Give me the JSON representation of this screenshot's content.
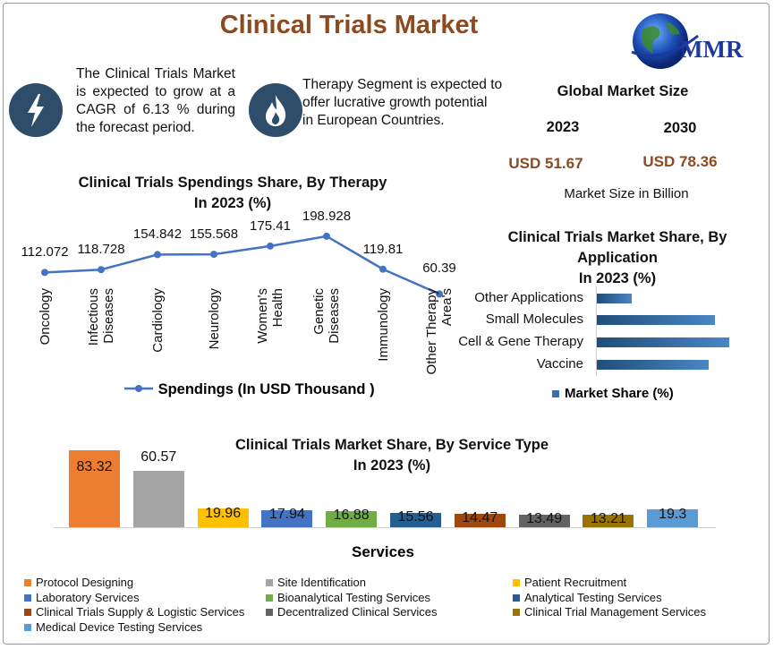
{
  "header": {
    "title": "Clinical Trials Market",
    "logo_text": "MMR"
  },
  "info": {
    "growth_text_lines": [
      "The Clinical Trials Market",
      "is expected to grow at a",
      "CAGR of 6.13 % during",
      "the forecast period."
    ],
    "therapy_text_lines": [
      "Therapy Segment is expected to",
      "offer lucrative growth potential",
      "in European Countries."
    ],
    "growth_icon": "lightning-bolt-icon",
    "therapy_icon": "flame-icon"
  },
  "market_size": {
    "title": "Global Market Size",
    "year_a": "2023",
    "year_b": "2030",
    "value_a": "USD 51.67",
    "value_b": "USD 78.36",
    "note": "Market Size in Billion"
  },
  "colors": {
    "brand": "#8b4a1f",
    "line": "#4472c4",
    "icon_bg": "#2d4d6b"
  },
  "chart_data": [
    {
      "type": "line",
      "title_lines": [
        "Clinical Trials Spendings  Share, By Therapy",
        "In 2023 (%)"
      ],
      "categories": [
        "Oncology",
        "Infectious Diseases",
        "Cardiology",
        "Neurology",
        "Women's Health",
        "Genetic Diseases",
        "Immunology",
        "Other Therapy Area's"
      ],
      "category_lines": [
        [
          "Oncology"
        ],
        [
          "Infectious",
          "Diseases"
        ],
        [
          "Cardiology"
        ],
        [
          "Neurology"
        ],
        [
          "Women's",
          "Health"
        ],
        [
          "Genetic",
          "Diseases"
        ],
        [
          "Immunology"
        ],
        [
          "Other Therapy",
          "Area's"
        ]
      ],
      "series": [
        {
          "name": "Spendings (In USD Thousand )",
          "values": [
            112.072,
            118.728,
            154.842,
            155.568,
            175.41,
            198.928,
            119.81,
            60.39
          ]
        }
      ],
      "value_labels": [
        "112.072",
        "118.728",
        "154.842",
        "155.568",
        "175.41",
        "198.928",
        "119.81",
        "60.39"
      ],
      "legend": "bottom",
      "grid": false
    },
    {
      "type": "bar",
      "orientation": "horizontal",
      "title_lines": [
        "Clinical Trials Market  Share, By",
        "Application",
        "In 2023 (%)"
      ],
      "categories": [
        "Other Applications",
        "Small Molecules",
        "Cell & Gene Therapy",
        "Vaccine"
      ],
      "values": [
        12,
        40,
        45,
        38
      ],
      "series_name": "Market Share (%)",
      "legend": "bottom",
      "grid": false
    },
    {
      "type": "bar",
      "title_lines": [
        "Clinical Trials Market  Share, By Service Type",
        "In 2023 (%)"
      ],
      "xlabel": "Services",
      "categories": [
        "Protocol Designing",
        "Site Identification",
        "Patient Recruitment",
        "Laboratory Services",
        "Bioanalytical Testing Services",
        "Analytical Testing Services",
        "Clinical Trials Supply & Logistic Services",
        "Decentralized Clinical Services",
        "Clinical Trial Management Services",
        "Medical Device Testing Services"
      ],
      "values": [
        83.32,
        60.57,
        19.96,
        17.94,
        16.88,
        15.56,
        14.47,
        13.49,
        13.21,
        19.3
      ],
      "value_labels": [
        "83.32",
        "60.57",
        "19.96",
        "17.94",
        "16.88",
        "15.56",
        "14.47",
        "13.49",
        "13.21",
        "19.3"
      ],
      "colors": [
        "#ed7d31",
        "#a5a5a5",
        "#ffc000",
        "#4472c4",
        "#70ad47",
        "#255e91",
        "#9e480e",
        "#636363",
        "#997300",
        "#5b9bd5"
      ],
      "legend": "bottom",
      "grid": false
    }
  ]
}
